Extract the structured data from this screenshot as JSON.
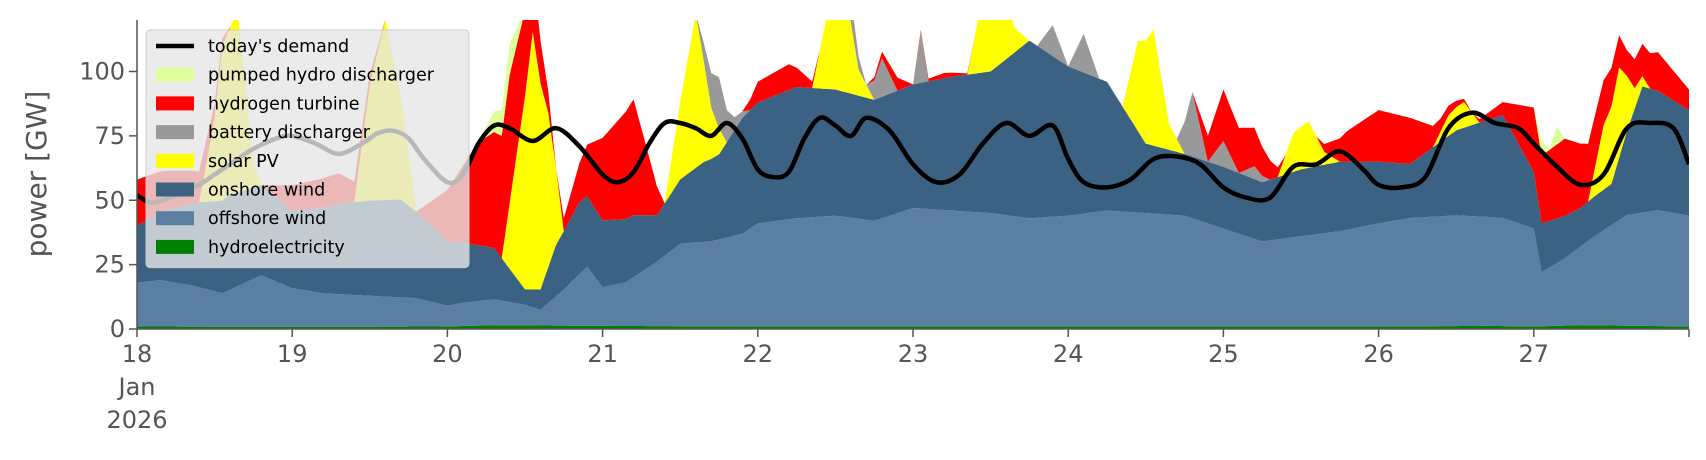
{
  "chart_data": {
    "type": "area",
    "title": "",
    "xlabel": "",
    "ylabel": "power [GW]",
    "ylim": [
      0,
      120
    ],
    "xlim": [
      0,
      10
    ],
    "y_ticks": [
      0,
      25,
      50,
      75,
      100
    ],
    "x_ticks": [
      {
        "value": 0,
        "label": "18",
        "sublabels": [
          "Jan",
          "2026"
        ]
      },
      {
        "value": 1,
        "label": "19"
      },
      {
        "value": 2,
        "label": "20"
      },
      {
        "value": 3,
        "label": "21"
      },
      {
        "value": 4,
        "label": "22"
      },
      {
        "value": 5,
        "label": "23"
      },
      {
        "value": 6,
        "label": "24"
      },
      {
        "value": 7,
        "label": "25"
      },
      {
        "value": 8,
        "label": "26"
      },
      {
        "value": 9,
        "label": "27"
      }
    ],
    "x_unit": "days from 18 Jan 2026",
    "grid": false,
    "legend_position": "top-left",
    "stack_order": [
      "hydroelectricity",
      "offshore wind",
      "onshore wind",
      "solar PV",
      "battery discharger",
      "hydrogen turbine",
      "pumped hydro discharger"
    ],
    "areas": [
      {
        "name": "hydroelectricity",
        "color": "#008000",
        "points": [
          [
            0,
            1.0
          ],
          [
            1,
            0.8
          ],
          [
            2,
            1.0
          ],
          [
            2.3,
            1.5
          ],
          [
            3,
            1.2
          ],
          [
            4,
            1.0
          ],
          [
            5,
            1.0
          ],
          [
            6,
            1.0
          ],
          [
            7,
            1.0
          ],
          [
            8,
            1.0
          ],
          [
            8.7,
            1.2
          ],
          [
            9,
            1.0
          ],
          [
            9.3,
            1.5
          ],
          [
            10,
            1.0
          ]
        ]
      },
      {
        "name": "offshore wind",
        "color": "#5b7fa3",
        "points": [
          [
            0,
            17
          ],
          [
            0.15,
            18
          ],
          [
            0.35,
            16
          ],
          [
            0.55,
            13
          ],
          [
            0.8,
            20
          ],
          [
            1.0,
            15
          ],
          [
            1.2,
            13
          ],
          [
            1.5,
            12
          ],
          [
            1.8,
            11
          ],
          [
            2.0,
            8
          ],
          [
            2.1,
            9
          ],
          [
            2.3,
            10
          ],
          [
            2.5,
            8
          ],
          [
            2.6,
            6
          ],
          [
            2.75,
            14
          ],
          [
            2.9,
            23
          ],
          [
            3.0,
            15
          ],
          [
            3.15,
            17
          ],
          [
            3.35,
            25
          ],
          [
            3.5,
            32
          ],
          [
            3.7,
            33
          ],
          [
            3.9,
            36
          ],
          [
            4.0,
            40
          ],
          [
            4.25,
            42
          ],
          [
            4.5,
            43
          ],
          [
            4.75,
            41
          ],
          [
            5.0,
            46
          ],
          [
            5.25,
            45
          ],
          [
            5.5,
            44
          ],
          [
            5.75,
            42
          ],
          [
            6.0,
            43
          ],
          [
            6.25,
            45
          ],
          [
            6.5,
            44
          ],
          [
            6.75,
            43
          ],
          [
            7.0,
            38
          ],
          [
            7.25,
            33
          ],
          [
            7.5,
            35
          ],
          [
            7.75,
            37
          ],
          [
            8.0,
            40
          ],
          [
            8.2,
            42
          ],
          [
            8.5,
            43
          ],
          [
            8.8,
            42
          ],
          [
            9.0,
            38
          ],
          [
            9.05,
            21
          ],
          [
            9.2,
            26
          ],
          [
            9.4,
            35
          ],
          [
            9.6,
            43
          ],
          [
            9.8,
            45
          ],
          [
            10.0,
            43
          ]
        ]
      },
      {
        "name": "onshore wind",
        "color": "#3b6283",
        "points": [
          [
            0,
            22
          ],
          [
            0.2,
            28
          ],
          [
            0.4,
            33
          ],
          [
            0.6,
            37
          ],
          [
            0.8,
            35
          ],
          [
            1.0,
            30
          ],
          [
            1.3,
            35
          ],
          [
            1.5,
            37
          ],
          [
            1.7,
            38
          ],
          [
            2.0,
            25
          ],
          [
            2.3,
            20
          ],
          [
            2.5,
            6
          ],
          [
            2.6,
            8
          ],
          [
            2.7,
            20
          ],
          [
            2.85,
            28
          ],
          [
            3.0,
            26
          ],
          [
            3.2,
            24
          ],
          [
            3.35,
            18
          ],
          [
            3.5,
            25
          ],
          [
            3.65,
            31
          ],
          [
            3.75,
            33
          ],
          [
            3.9,
            45
          ],
          [
            4.0,
            47
          ],
          [
            4.25,
            51
          ],
          [
            4.5,
            49
          ],
          [
            4.75,
            47
          ],
          [
            5.0,
            48
          ],
          [
            5.25,
            52
          ],
          [
            5.5,
            55
          ],
          [
            5.75,
            69
          ],
          [
            6.0,
            58
          ],
          [
            6.25,
            50
          ],
          [
            6.5,
            27
          ],
          [
            6.75,
            24
          ],
          [
            7.0,
            24
          ],
          [
            7.25,
            23
          ],
          [
            7.5,
            26
          ],
          [
            7.75,
            27
          ],
          [
            8.0,
            24
          ],
          [
            8.2,
            21
          ],
          [
            8.5,
            33
          ],
          [
            8.8,
            40
          ],
          [
            9.0,
            22
          ],
          [
            9.05,
            19
          ],
          [
            9.3,
            15
          ],
          [
            9.5,
            16
          ],
          [
            9.7,
            49
          ],
          [
            10.0,
            41
          ]
        ]
      },
      {
        "name": "solar PV",
        "color": "#ffff00",
        "points": [
          [
            0,
            0
          ],
          [
            0.4,
            0
          ],
          [
            0.5,
            32
          ],
          [
            0.55,
            60
          ],
          [
            0.65,
            70
          ],
          [
            0.75,
            10
          ],
          [
            0.8,
            0
          ],
          [
            1.4,
            0
          ],
          [
            1.5,
            45
          ],
          [
            1.6,
            70
          ],
          [
            1.7,
            40
          ],
          [
            1.8,
            0
          ],
          [
            2.35,
            0
          ],
          [
            2.45,
            50
          ],
          [
            2.55,
            100
          ],
          [
            2.65,
            60
          ],
          [
            2.75,
            0
          ],
          [
            3.4,
            0
          ],
          [
            3.5,
            30
          ],
          [
            3.6,
            60
          ],
          [
            3.7,
            20
          ],
          [
            3.8,
            0
          ],
          [
            4.35,
            0
          ],
          [
            4.45,
            30
          ],
          [
            4.55,
            45
          ],
          [
            4.65,
            10
          ],
          [
            4.75,
            0
          ],
          [
            5.35,
            0
          ],
          [
            5.45,
            30
          ],
          [
            5.55,
            45
          ],
          [
            5.65,
            10
          ],
          [
            5.75,
            0
          ],
          [
            6.35,
            0
          ],
          [
            6.45,
            35
          ],
          [
            6.55,
            45
          ],
          [
            6.65,
            10
          ],
          [
            6.75,
            0
          ],
          [
            7.35,
            0
          ],
          [
            7.45,
            15
          ],
          [
            7.55,
            18
          ],
          [
            7.65,
            5
          ],
          [
            7.75,
            0
          ],
          [
            8.35,
            0
          ],
          [
            8.45,
            8
          ],
          [
            8.55,
            10
          ],
          [
            8.65,
            0
          ],
          [
            9.35,
            0
          ],
          [
            9.45,
            25
          ],
          [
            9.55,
            35
          ],
          [
            9.65,
            8
          ],
          [
            9.75,
            0
          ],
          [
            10,
            0
          ]
        ]
      },
      {
        "name": "battery discharger",
        "color": "#999999",
        "points": [
          [
            0,
            0
          ],
          [
            3.6,
            0
          ],
          [
            3.75,
            20
          ],
          [
            3.85,
            5
          ],
          [
            3.95,
            0
          ],
          [
            4.5,
            0
          ],
          [
            4.6,
            10
          ],
          [
            4.7,
            0
          ],
          [
            4.8,
            15
          ],
          [
            4.9,
            0
          ],
          [
            5.0,
            0
          ],
          [
            5.05,
            20
          ],
          [
            5.1,
            0
          ],
          [
            5.8,
            0
          ],
          [
            5.9,
            12
          ],
          [
            6.0,
            0
          ],
          [
            6.1,
            15
          ],
          [
            6.2,
            0
          ],
          [
            6.7,
            0
          ],
          [
            6.8,
            25
          ],
          [
            6.9,
            0
          ],
          [
            7.0,
            10
          ],
          [
            7.1,
            0
          ],
          [
            7.2,
            5
          ],
          [
            7.3,
            0
          ],
          [
            10,
            0
          ]
        ]
      },
      {
        "name": "hydrogen turbine",
        "color": "#ff0000",
        "points": [
          [
            0,
            18
          ],
          [
            0.2,
            15
          ],
          [
            0.4,
            12
          ],
          [
            0.6,
            0
          ],
          [
            0.8,
            0
          ],
          [
            1.0,
            10
          ],
          [
            1.3,
            12
          ],
          [
            1.6,
            0
          ],
          [
            1.8,
            0
          ],
          [
            2.0,
            20
          ],
          [
            2.2,
            40
          ],
          [
            2.4,
            50
          ],
          [
            2.7,
            0
          ],
          [
            2.9,
            20
          ],
          [
            3.0,
            32
          ],
          [
            3.2,
            45
          ],
          [
            3.4,
            0
          ],
          [
            3.9,
            0
          ],
          [
            4.0,
            8
          ],
          [
            4.2,
            10
          ],
          [
            4.4,
            0
          ],
          [
            4.7,
            0
          ],
          [
            4.9,
            5
          ],
          [
            5.0,
            0
          ],
          [
            5.2,
            2
          ],
          [
            5.4,
            0
          ],
          [
            6.6,
            0
          ],
          [
            6.8,
            0
          ],
          [
            7.0,
            20
          ],
          [
            7.2,
            15
          ],
          [
            7.4,
            0
          ],
          [
            7.6,
            0
          ],
          [
            7.8,
            12
          ],
          [
            8.0,
            20
          ],
          [
            8.2,
            18
          ],
          [
            8.4,
            5
          ],
          [
            8.6,
            0
          ],
          [
            8.8,
            5
          ],
          [
            9.0,
            25
          ],
          [
            9.2,
            30
          ],
          [
            9.4,
            20
          ],
          [
            9.6,
            10
          ],
          [
            9.8,
            15
          ],
          [
            10,
            8
          ]
        ]
      },
      {
        "name": "pumped hydro discharger",
        "color": "#ddff99",
        "points": [
          [
            0,
            0
          ],
          [
            2.2,
            0
          ],
          [
            2.3,
            8
          ],
          [
            2.4,
            12
          ],
          [
            2.5,
            0
          ],
          [
            9.0,
            0
          ],
          [
            9.05,
            6
          ],
          [
            9.1,
            0
          ],
          [
            9.15,
            7
          ],
          [
            9.2,
            0
          ],
          [
            10,
            0
          ]
        ]
      }
    ],
    "series": [
      {
        "name": "today's demand",
        "type": "line",
        "color": "#000000",
        "x": [
          0,
          0.1,
          0.25,
          0.4,
          0.5,
          0.6,
          0.75,
          0.9,
          1.0,
          1.15,
          1.3,
          1.45,
          1.55,
          1.65,
          1.75,
          1.85,
          2.0,
          2.1,
          2.2,
          2.3,
          2.4,
          2.55,
          2.7,
          2.85,
          3.0,
          3.1,
          3.2,
          3.3,
          3.4,
          3.5,
          3.6,
          3.7,
          3.8,
          3.9,
          4.0,
          4.1,
          4.2,
          4.3,
          4.4,
          4.5,
          4.6,
          4.7,
          4.85,
          5.0,
          5.15,
          5.3,
          5.45,
          5.6,
          5.75,
          5.9,
          6.0,
          6.1,
          6.25,
          6.4,
          6.55,
          6.7,
          6.85,
          7.0,
          7.15,
          7.3,
          7.45,
          7.6,
          7.75,
          7.9,
          8.0,
          8.15,
          8.3,
          8.45,
          8.6,
          8.75,
          8.9,
          9.0,
          9.15,
          9.3,
          9.45,
          9.6,
          9.75,
          9.9,
          10.0
        ],
        "values": [
          52,
          49,
          52,
          56,
          60,
          64,
          70,
          74,
          75,
          72,
          68,
          72,
          76,
          77,
          74,
          66,
          57,
          60,
          72,
          79,
          78,
          73,
          78,
          71,
          60,
          57,
          61,
          72,
          80,
          80,
          78,
          75,
          80,
          74,
          62,
          59,
          61,
          74,
          82,
          79,
          75,
          82,
          77,
          64,
          57,
          60,
          72,
          80,
          75,
          79,
          66,
          57,
          55,
          58,
          66,
          67,
          64,
          55,
          51,
          51,
          63,
          64,
          69,
          62,
          56,
          55,
          59,
          78,
          84,
          80,
          78,
          72,
          63,
          56,
          60,
          78,
          80,
          78,
          64
        ]
      }
    ],
    "legend": [
      "today's demand",
      "pumped hydro discharger",
      "hydrogen turbine",
      "battery discharger",
      "solar PV",
      "onshore wind",
      "offshore wind",
      "hydroelectricity"
    ]
  }
}
